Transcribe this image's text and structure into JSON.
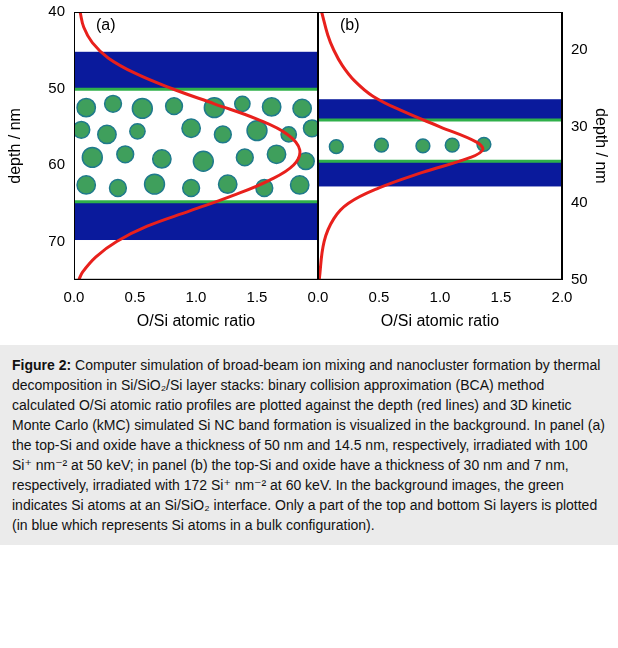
{
  "chart_data": [
    {
      "type": "line",
      "panel": "(a)",
      "x_label": "O/Si atomic ratio",
      "y_label": "depth / nm",
      "xlim": [
        0,
        2
      ],
      "xticks": [
        {
          "value": 0,
          "label": "0.0"
        },
        {
          "value": 0.5,
          "label": "0.5"
        },
        {
          "value": 1,
          "label": "1.0"
        },
        {
          "value": 1.5,
          "label": "1.5"
        }
      ],
      "ylim": [
        75,
        40
      ],
      "yticks": [
        40,
        50,
        60,
        70
      ],
      "grid": false,
      "series": [
        {
          "color": "#e8201c",
          "line_style": "solid",
          "x": [
            0.05,
            0.08,
            0.15,
            0.28,
            0.5,
            0.8,
            1.15,
            1.5,
            1.75,
            1.85,
            1.8,
            1.6,
            1.3,
            0.95,
            0.6,
            0.35,
            0.18,
            0.07,
            0.04
          ],
          "y": [
            40,
            42,
            44,
            46,
            48,
            50,
            52,
            54,
            56,
            58,
            60,
            62,
            64,
            66,
            68,
            70,
            72,
            74,
            75
          ]
        }
      ],
      "bands": [
        {
          "from": 45.2,
          "to": 50.1,
          "color": "#0a1a9c"
        },
        {
          "from": 64.8,
          "to": 69.8,
          "color": "#0a1a9c"
        }
      ],
      "interfaces": [
        50.1,
        64.8
      ],
      "interface_color": "#2fb04a",
      "clusters": {
        "color": "#3f9f5c",
        "edge_color": "#1f7a8c",
        "items": [
          [
            0.1,
            52.5,
            1.2
          ],
          [
            0.32,
            52,
            1.1
          ],
          [
            0.56,
            52.6,
            1.3
          ],
          [
            0.82,
            52.3,
            1.1
          ],
          [
            1.15,
            52.5,
            1.3
          ],
          [
            1.38,
            52,
            1.0
          ],
          [
            1.62,
            52.4,
            1.2
          ],
          [
            1.87,
            52.6,
            1.2
          ],
          [
            0.06,
            55.4,
            1.1
          ],
          [
            0.27,
            56,
            1.2
          ],
          [
            0.52,
            55.6,
            1.0
          ],
          [
            0.96,
            55.2,
            1.2
          ],
          [
            1.22,
            56,
            1.1
          ],
          [
            1.5,
            55.5,
            1.3
          ],
          [
            1.76,
            56,
            1.0
          ],
          [
            1.95,
            55.2,
            1.1
          ],
          [
            0.15,
            59,
            1.3
          ],
          [
            0.42,
            58.6,
            1.1
          ],
          [
            0.72,
            59.2,
            1.2
          ],
          [
            1.06,
            59.5,
            1.3
          ],
          [
            1.4,
            59,
            1.1
          ],
          [
            1.66,
            58.6,
            1.2
          ],
          [
            1.9,
            59.5,
            1.1
          ],
          [
            0.1,
            62.6,
            1.2
          ],
          [
            0.36,
            63,
            1.1
          ],
          [
            0.66,
            62.5,
            1.3
          ],
          [
            0.96,
            63,
            1.1
          ],
          [
            1.26,
            62.5,
            1.2
          ],
          [
            1.56,
            63,
            1.1
          ],
          [
            1.85,
            62.6,
            1.2
          ]
        ]
      }
    },
    {
      "type": "line",
      "panel": "(b)",
      "x_label": "O/Si atomic ratio",
      "y_label": "depth / nm",
      "xlim": [
        0,
        2
      ],
      "xticks": [
        {
          "value": 0,
          "label": "0.0"
        },
        {
          "value": 0.5,
          "label": "0.5"
        },
        {
          "value": 1,
          "label": "1.0"
        },
        {
          "value": 1.5,
          "label": "1.5"
        },
        {
          "value": 2,
          "label": "2.0"
        }
      ],
      "ylim": [
        50,
        15
      ],
      "yticks": [
        20,
        30,
        40,
        50
      ],
      "grid": false,
      "series": [
        {
          "color": "#e8201c",
          "line_style": "solid",
          "x": [
            0.03,
            0.08,
            0.13,
            0.2,
            0.3,
            0.45,
            0.7,
            1.0,
            1.3,
            1.35,
            1.25,
            0.85,
            0.5,
            0.25,
            0.13,
            0.05,
            0.01
          ],
          "y": [
            15,
            18,
            20,
            22,
            24,
            26,
            28,
            30,
            32,
            33,
            34,
            36,
            38,
            40,
            42,
            45,
            50
          ]
        }
      ],
      "bands": [
        {
          "from": 26.4,
          "to": 29.1,
          "color": "#0a1a9c"
        },
        {
          "from": 34.5,
          "to": 37.8,
          "color": "#0a1a9c"
        }
      ],
      "interfaces": [
        29.1,
        34.5
      ],
      "interface_color": "#2fb04a",
      "clusters": {
        "color": "#3f9f5c",
        "edge_color": "#1f7a8c",
        "items": [
          [
            0.15,
            32.6,
            0.9
          ],
          [
            0.52,
            32.4,
            0.9
          ],
          [
            0.86,
            32.5,
            0.9
          ],
          [
            1.1,
            32.4,
            0.9
          ],
          [
            1.36,
            32.3,
            0.9
          ]
        ]
      }
    }
  ],
  "caption": {
    "label": "Figure 2:",
    "text": "Computer simulation of broad-beam ion mixing and nanocluster formation by thermal decomposition in Si/SiO₂/Si layer stacks: binary collision approximation (BCA) method calculated O/Si atomic ratio profiles are plotted against the depth (red lines) and 3D kinetic Monte Carlo (kMC) simulated Si NC band formation is visualized in the background. In panel (a) the top-Si and oxide have a thickness of 50 nm and 14.5 nm, respectively, irradiated with 100 Si⁺ nm⁻² at 50 keV; in panel (b) the top-Si and oxide have a thickness of 30 nm and 7 nm, respectively, irradiated with 172 Si⁺ nm⁻² at 60 keV. In the background images, the green indicates Si atoms at an Si/SiO₂ interface. Only a part of the top and bottom Si layers is plotted (in blue which represents Si atoms in a bulk configuration)."
  }
}
